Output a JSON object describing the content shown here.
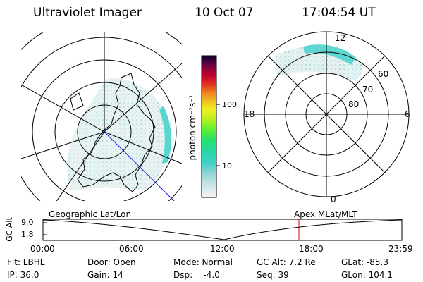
{
  "header": {
    "instrument": "Ultraviolet Imager",
    "date": "10 Oct 07",
    "time": "17:04:54 UT"
  },
  "colorbar": {
    "label_html": "photon cm⁻²s⁻¹",
    "ticks": [
      "100",
      "10"
    ]
  },
  "mlt_panel": {
    "mlt_labels": {
      "top": "12",
      "left": "18",
      "right": "6",
      "bottom": "0"
    },
    "lat_labels": [
      "60",
      "70",
      "80"
    ]
  },
  "timeline": {
    "y_axis_title": "GC Alt",
    "y_ticks": [
      "9.0",
      "1.8"
    ],
    "left_label": "Geographic Lat/Lon",
    "right_label": "Apex  MLat/MLT",
    "x_ticks": [
      "00:00",
      "06:00",
      "12:00",
      "18:00",
      "23:59"
    ],
    "cursor_color": "#d40000"
  },
  "info": {
    "row1": [
      "Flt: LBHL",
      "Door: Open",
      "Mode: Normal",
      "GC Alt: 7.2 Re",
      "GLat: -85.3"
    ],
    "row2": [
      "IP: 36.0",
      "Gain: 14",
      "Dsp:    -4.0",
      "Seq: 39",
      "GLon: 104.1"
    ]
  }
}
